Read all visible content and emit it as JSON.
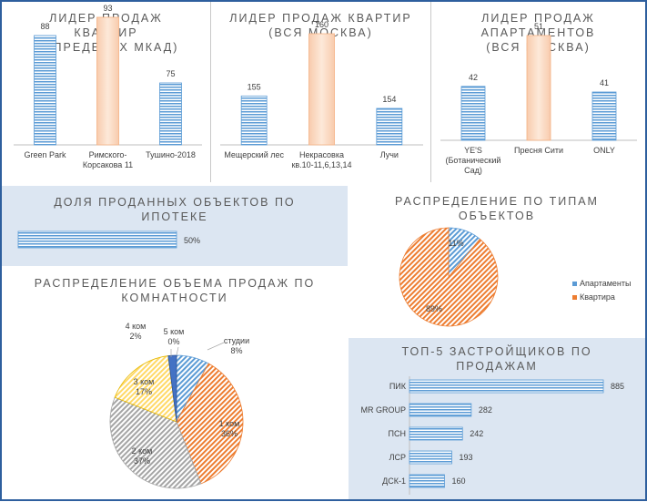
{
  "colors": {
    "blue": "#5b9bd5",
    "peach": "#fbd4b4",
    "orange": "#ed7d31",
    "gray": "#a5a5a5",
    "yellow": "#ffd966",
    "panel_bg": "#dce6f2",
    "border": "#2e5f9e"
  },
  "titles": {
    "leader_mkad": [
      "ЛИДЕР ПРОДАЖ",
      "КВАРТИР",
      "(В ПРЕДЕЛАХ МКАД)"
    ],
    "leader_moscow": [
      "ЛИДЕР ПРОДАЖ  КВАРТИР",
      "(ВСЯ МОСКВА)"
    ],
    "leader_apart": [
      "ЛИДЕР ПРОДАЖ",
      "АПАРТАМЕНТОВ",
      "(ВСЯ МОСКВА)"
    ],
    "mortgage": [
      "ДОЛЯ ПРОДАННЫХ ОБЪЕКТОВ ПО",
      "ИПОТЕКЕ"
    ],
    "types": [
      "РАСПРЕДЕЛЕНИЕ ПО ТИПАМ",
      "ОБЪЕКТОВ"
    ],
    "rooms": [
      "РАСПРЕДЕЛЕНИЕ ОБЪЕМА ПРОДАЖ ПО",
      "КОМНАТНОСТИ"
    ],
    "developers": [
      "ТОП-5 ЗАСТРОЙЩИКОВ ПО",
      "ПРОДАЖАМ"
    ]
  },
  "chart_data": [
    {
      "id": "mkad",
      "type": "bar",
      "categories": [
        [
          "Green Park"
        ],
        [
          "Римского-",
          "Корсакова 11"
        ],
        [
          "Тушино-2018"
        ]
      ],
      "values": [
        88,
        93,
        75
      ],
      "labels": [
        "88",
        "93",
        "75"
      ],
      "highlight_index": 1
    },
    {
      "id": "moscow",
      "type": "bar",
      "categories": [
        [
          "Мещерский лес"
        ],
        [
          "Некрасовка",
          "кв.10-11,6,13,14"
        ],
        [
          "Лучи"
        ]
      ],
      "values": [
        155,
        160,
        154
      ],
      "labels": [
        "155",
        "160",
        "154"
      ],
      "highlight_index": 1
    },
    {
      "id": "apart",
      "type": "bar",
      "categories": [
        [
          "YE'S",
          "(Ботанический",
          "Сад)"
        ],
        [
          "Пресня Сити"
        ],
        [
          "ONLY"
        ]
      ],
      "values": [
        42,
        51,
        41
      ],
      "labels": [
        "42",
        "51",
        "41"
      ],
      "highlight_index": 1
    },
    {
      "id": "mortgage",
      "type": "bar",
      "orientation": "horizontal",
      "values": [
        50
      ],
      "labels": [
        "50%"
      ],
      "xlim": [
        0,
        100
      ]
    },
    {
      "id": "types",
      "type": "pie",
      "slices": [
        {
          "name": "Апартаменты",
          "value": 11,
          "label": "11%"
        },
        {
          "name": "Квартира",
          "value": 89,
          "label": "89%"
        }
      ],
      "legend": "right"
    },
    {
      "id": "rooms",
      "type": "pie",
      "slices": [
        {
          "name": "студии",
          "value": 8,
          "label": [
            "студии",
            "8%"
          ]
        },
        {
          "name": "1 ком",
          "value": 36,
          "label": [
            "1 ком",
            "36%"
          ]
        },
        {
          "name": "2 ком",
          "value": 37,
          "label": [
            "2 ком",
            "37%"
          ]
        },
        {
          "name": "3 ком",
          "value": 17,
          "label": [
            "3 ком",
            "17%"
          ]
        },
        {
          "name": "4 ком",
          "value": 2,
          "label": [
            "4 ком",
            "2%"
          ]
        },
        {
          "name": "5 ком",
          "value": 0,
          "label": [
            "5 ком",
            "0%"
          ]
        }
      ]
    },
    {
      "id": "developers",
      "type": "bar",
      "orientation": "horizontal",
      "categories": [
        "ПИК",
        "MR GROUP",
        "ПСН",
        "ЛСР",
        "ДСК-1"
      ],
      "values": [
        885,
        282,
        242,
        193,
        160
      ],
      "labels": [
        "885",
        "282",
        "242",
        "193",
        "160"
      ]
    }
  ]
}
